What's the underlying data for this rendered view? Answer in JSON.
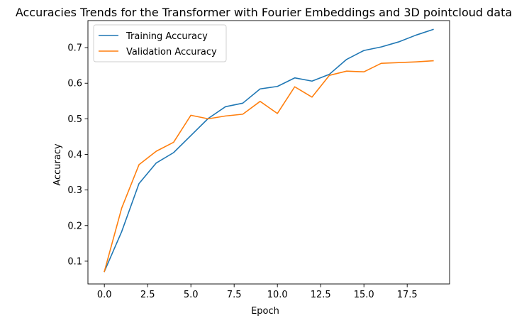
{
  "chart_data": {
    "type": "line",
    "title": "Accuracies Trends for the Transformer with Fourier Embeddings and 3D pointcloud data",
    "xlabel": "Epoch",
    "ylabel": "Accuracy",
    "xlim": [
      -0.95,
      19.95
    ],
    "ylim": [
      0.036,
      0.776
    ],
    "xticks": [
      0.0,
      2.5,
      5.0,
      7.5,
      10.0,
      12.5,
      15.0,
      17.5
    ],
    "xtick_labels": [
      "0.0",
      "2.5",
      "5.0",
      "7.5",
      "10.0",
      "12.5",
      "15.0",
      "17.5"
    ],
    "yticks": [
      0.1,
      0.2,
      0.3,
      0.4,
      0.5,
      0.6,
      0.7
    ],
    "ytick_labels": [
      "0.1",
      "0.2",
      "0.3",
      "0.4",
      "0.5",
      "0.6",
      "0.7"
    ],
    "grid": false,
    "legend_position": "upper-left",
    "x": [
      0,
      1,
      2,
      3,
      4,
      5,
      6,
      7,
      8,
      9,
      10,
      11,
      12,
      13,
      14,
      15,
      16,
      17,
      18,
      19
    ],
    "series": [
      {
        "name": "Training Accuracy",
        "color": "#1f77b4",
        "values": [
          0.071,
          0.183,
          0.318,
          0.376,
          0.405,
          0.453,
          0.501,
          0.534,
          0.544,
          0.584,
          0.591,
          0.615,
          0.606,
          0.625,
          0.667,
          0.692,
          0.702,
          0.716,
          0.735,
          0.751
        ]
      },
      {
        "name": "Validation Accuracy",
        "color": "#ff7f0e",
        "values": [
          0.071,
          0.249,
          0.371,
          0.409,
          0.434,
          0.51,
          0.5,
          0.508,
          0.513,
          0.549,
          0.515,
          0.59,
          0.561,
          0.622,
          0.634,
          0.632,
          0.656,
          0.658,
          0.66,
          0.663
        ]
      }
    ]
  }
}
